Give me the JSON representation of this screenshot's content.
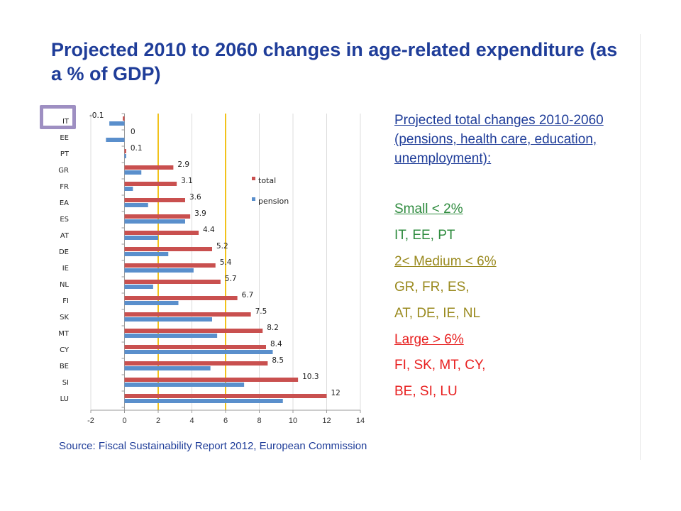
{
  "title": "Projected 2010 to 2060 changes in age-related expenditure (as a % of GDP)",
  "colors": {
    "title": "#1f3d99",
    "total": "#c9504f",
    "pension": "#5a8fcc",
    "threshold": "#f2c21a",
    "small": "#2e8b3e",
    "medium": "#9a8a1f",
    "large": "#e82020",
    "highlight": "#9e8fc2"
  },
  "chart_data": {
    "type": "bar",
    "orientation": "horizontal",
    "title": "",
    "categories": [
      "IT",
      "EE",
      "PT",
      "GR",
      "FR",
      "EA",
      "ES",
      "AT",
      "DE",
      "IE",
      "NL",
      "FI",
      "SK",
      "MT",
      "CY",
      "BE",
      "SI",
      "LU"
    ],
    "series": [
      {
        "name": "total",
        "values": [
          -0.1,
          0,
          0.1,
          2.9,
          3.1,
          3.6,
          3.9,
          4.4,
          5.2,
          5.4,
          5.7,
          6.7,
          7.5,
          8.2,
          8.4,
          8.5,
          10.3,
          12
        ]
      },
      {
        "name": "pension",
        "values": [
          -0.9,
          -1.1,
          0.1,
          1.0,
          0.5,
          1.4,
          3.6,
          2.0,
          2.6,
          4.1,
          1.7,
          3.2,
          5.2,
          5.5,
          8.8,
          5.1,
          7.1,
          9.4
        ]
      }
    ],
    "data_labels": [
      "-0.1",
      "0",
      "0.1",
      "2.9",
      "3.1",
      "3.6",
      "3.9",
      "4.4",
      "5.2",
      "5.4",
      "5.7",
      "6.7",
      "7.5",
      "8.2",
      "8.4",
      "8.5",
      "10.3",
      "12"
    ],
    "xlim": [
      -2,
      14
    ],
    "xticks": [
      -2,
      0,
      2,
      4,
      6,
      8,
      10,
      12,
      14
    ],
    "xtick_labels": [
      "-2",
      "0",
      "2",
      "4",
      "6",
      "8",
      "10",
      "12",
      "14"
    ],
    "reference_lines": [
      2,
      6
    ],
    "grid": true,
    "legend_position": "right",
    "xlabel": "",
    "ylabel": ""
  },
  "legend_panel": {
    "heading": "Projected  total changes  2010-2060 (pensions, health care, education, unemployment):",
    "small_label": "Small < 2%",
    "small_countries": "IT, EE, PT",
    "medium_label": "2< Medium < 6%",
    "medium_countries_1": "GR, FR, ES,",
    "medium_countries_2": "AT, DE, IE, NL",
    "large_label": "Large > 6%",
    "large_countries_1": "FI, SK, MT, CY,",
    "large_countries_2": "BE, SI, LU"
  },
  "source": "Source: Fiscal Sustainability Report 2012, European Commission"
}
